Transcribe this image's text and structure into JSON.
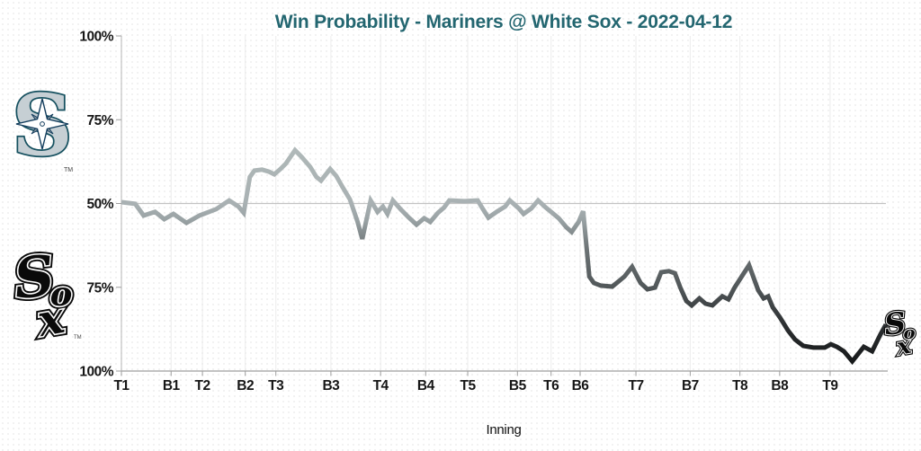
{
  "page": {
    "title": "Win Probability - Mariners @ White Sox - 2022-04-12",
    "x_axis_title": "Inning"
  },
  "teams": {
    "away": {
      "name": "Mariners",
      "logo_letter": "S"
    },
    "home": {
      "name": "White Sox",
      "logo_letters": {
        "s": "S",
        "o": "o",
        "x": "x"
      }
    },
    "winner_logo_at_line_end": "White Sox"
  },
  "logos": {
    "trademark": "TM"
  },
  "colors": {
    "title": "#236670",
    "grid": "#ececec",
    "axis_line": "#c6c6c6",
    "mid_line": "#c3c3c3",
    "bottom_axis": "#adadad",
    "tick_mark": "#9e9e9e",
    "tick_text": "#161616",
    "mariners_silver": "#c6cfd4",
    "mariners_teal": "#15505f",
    "sox_black": "#0a0a0a"
  },
  "chart_data": {
    "type": "line",
    "title": "Win Probability - Mariners @ White Sox - 2022-04-12",
    "xlabel": "Inning",
    "ylabel": "",
    "y_axis_description": "Mirrored win-probability axis: top half = Mariners win probability (50%-100% upward), bottom half = White Sox win probability (50%-100% downward); center line = 50%",
    "y_tick_labels": [
      "100%",
      "75%",
      "50%",
      "75%",
      "100%"
    ],
    "ylim_top_team": "Mariners",
    "ylim_bottom_team": "White Sox",
    "grid": true,
    "legend": false,
    "x_ticks": [
      {
        "label": "T1",
        "pos": 0.0
      },
      {
        "label": "B1",
        "pos": 0.065
      },
      {
        "label": "T2",
        "pos": 0.106
      },
      {
        "label": "B2",
        "pos": 0.162
      },
      {
        "label": "T3",
        "pos": 0.202
      },
      {
        "label": "B3",
        "pos": 0.274
      },
      {
        "label": "T4",
        "pos": 0.339
      },
      {
        "label": "B4",
        "pos": 0.398
      },
      {
        "label": "T5",
        "pos": 0.453
      },
      {
        "label": "B5",
        "pos": 0.518
      },
      {
        "label": "T6",
        "pos": 0.562
      },
      {
        "label": "B6",
        "pos": 0.6
      },
      {
        "label": "T7",
        "pos": 0.673
      },
      {
        "label": "B7",
        "pos": 0.744
      },
      {
        "label": "T8",
        "pos": 0.809
      },
      {
        "label": "B8",
        "pos": 0.861
      },
      {
        "label": "T9",
        "pos": 0.927
      }
    ],
    "series": [
      {
        "name": "Mariners win probability (%) by play; x = fraction of game plays elapsed",
        "points": [
          [
            0.0,
            50.4
          ],
          [
            0.018,
            49.9
          ],
          [
            0.029,
            46.4
          ],
          [
            0.044,
            47.5
          ],
          [
            0.056,
            45.3
          ],
          [
            0.068,
            46.9
          ],
          [
            0.085,
            44.2
          ],
          [
            0.102,
            46.4
          ],
          [
            0.124,
            48.3
          ],
          [
            0.141,
            50.9
          ],
          [
            0.153,
            49.1
          ],
          [
            0.16,
            47.2
          ],
          [
            0.168,
            57.9
          ],
          [
            0.174,
            59.8
          ],
          [
            0.184,
            60.1
          ],
          [
            0.193,
            59.5
          ],
          [
            0.2,
            58.7
          ],
          [
            0.208,
            60.3
          ],
          [
            0.215,
            61.9
          ],
          [
            0.227,
            65.9
          ],
          [
            0.236,
            63.8
          ],
          [
            0.247,
            60.9
          ],
          [
            0.255,
            57.9
          ],
          [
            0.261,
            56.8
          ],
          [
            0.273,
            60.3
          ],
          [
            0.281,
            58.2
          ],
          [
            0.289,
            55.0
          ],
          [
            0.299,
            51.2
          ],
          [
            0.309,
            44.5
          ],
          [
            0.315,
            39.4
          ],
          [
            0.326,
            50.9
          ],
          [
            0.335,
            47.5
          ],
          [
            0.342,
            49.1
          ],
          [
            0.348,
            46.9
          ],
          [
            0.355,
            50.9
          ],
          [
            0.365,
            48.3
          ],
          [
            0.376,
            45.8
          ],
          [
            0.386,
            43.7
          ],
          [
            0.396,
            45.6
          ],
          [
            0.404,
            44.5
          ],
          [
            0.414,
            47.2
          ],
          [
            0.422,
            48.8
          ],
          [
            0.429,
            50.9
          ],
          [
            0.449,
            50.7
          ],
          [
            0.466,
            50.9
          ],
          [
            0.473,
            48.3
          ],
          [
            0.48,
            45.8
          ],
          [
            0.492,
            47.7
          ],
          [
            0.502,
            49.1
          ],
          [
            0.508,
            50.9
          ],
          [
            0.52,
            48.5
          ],
          [
            0.526,
            46.9
          ],
          [
            0.536,
            48.5
          ],
          [
            0.545,
            50.9
          ],
          [
            0.555,
            48.8
          ],
          [
            0.562,
            47.5
          ],
          [
            0.572,
            45.6
          ],
          [
            0.582,
            42.9
          ],
          [
            0.589,
            41.5
          ],
          [
            0.598,
            44.5
          ],
          [
            0.604,
            47.7
          ],
          [
            0.612,
            28.2
          ],
          [
            0.618,
            26.3
          ],
          [
            0.627,
            25.5
          ],
          [
            0.642,
            25.2
          ],
          [
            0.649,
            26.5
          ],
          [
            0.658,
            28.2
          ],
          [
            0.668,
            31.1
          ],
          [
            0.679,
            26.3
          ],
          [
            0.688,
            24.4
          ],
          [
            0.698,
            24.9
          ],
          [
            0.706,
            29.5
          ],
          [
            0.716,
            29.8
          ],
          [
            0.724,
            29.2
          ],
          [
            0.731,
            24.9
          ],
          [
            0.739,
            20.9
          ],
          [
            0.746,
            19.6
          ],
          [
            0.756,
            21.7
          ],
          [
            0.764,
            20.1
          ],
          [
            0.773,
            19.6
          ],
          [
            0.786,
            22.3
          ],
          [
            0.794,
            21.4
          ],
          [
            0.802,
            24.9
          ],
          [
            0.821,
            31.6
          ],
          [
            0.833,
            24.1
          ],
          [
            0.84,
            21.7
          ],
          [
            0.846,
            22.3
          ],
          [
            0.852,
            19.0
          ],
          [
            0.861,
            16.1
          ],
          [
            0.872,
            12.1
          ],
          [
            0.881,
            9.4
          ],
          [
            0.892,
            7.5
          ],
          [
            0.905,
            7.0
          ],
          [
            0.92,
            7.0
          ],
          [
            0.928,
            8.0
          ],
          [
            0.936,
            7.2
          ],
          [
            0.945,
            5.9
          ],
          [
            0.956,
            2.9
          ],
          [
            0.971,
            7.2
          ],
          [
            0.982,
            5.9
          ],
          [
            0.993,
            11.0
          ],
          [
            1.0,
            13.9
          ]
        ]
      }
    ],
    "line_gradient_stops": [
      [
        0.0,
        "#c8d0d4"
      ],
      [
        0.38,
        "#adb6b6"
      ],
      [
        0.5,
        "#a9b1b3"
      ],
      [
        0.55,
        "#99a2a4"
      ],
      [
        0.63,
        "#6e7577"
      ],
      [
        0.75,
        "#515759"
      ],
      [
        0.87,
        "#2b2e30"
      ],
      [
        1.0,
        "#121415"
      ]
    ],
    "line_width": 5
  }
}
